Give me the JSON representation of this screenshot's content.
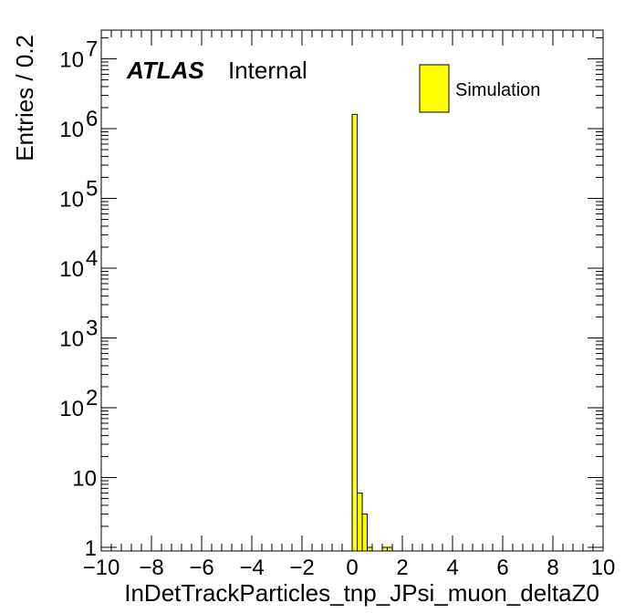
{
  "chart_data": {
    "type": "bar",
    "xlabel": "InDetTrackParticles_tnp_JPsi_muon_deltaZ0",
    "ylabel": "Entries / 0.2",
    "xlim": [
      -10,
      10
    ],
    "ylim": [
      0.8,
      25000000
    ],
    "yscale": "log",
    "bin_width": 0.2,
    "bin_edges": [
      0.0,
      0.2,
      0.4,
      0.6,
      0.8,
      1.0,
      1.2,
      1.4,
      1.6
    ],
    "values": [
      1600000,
      6,
      3,
      1,
      0,
      0,
      1,
      1
    ],
    "x_ticks": [
      "−10",
      "−8",
      "−6",
      "−4",
      "−2",
      "0",
      "2",
      "4",
      "6",
      "8",
      "10"
    ],
    "x_tick_values": [
      -10,
      -8,
      -6,
      -4,
      -2,
      0,
      2,
      4,
      6,
      8,
      10
    ],
    "y_tick_values": [
      1,
      10,
      100,
      1000,
      10000,
      100000,
      1000000,
      10000000
    ],
    "y_tick_base": "10",
    "y_tick_exponents": [
      "",
      "",
      "2",
      "3",
      "4",
      "5",
      "6",
      "7"
    ],
    "y_tick_plain": [
      "1",
      "10",
      "",
      "",
      "",
      "",
      "",
      ""
    ],
    "atlas_label": "ATLAS",
    "atlas_sublabel": "Internal",
    "legend": {
      "entries": [
        "Simulation"
      ],
      "placement": "top-right"
    },
    "series_color": "#ffff00",
    "edge_color": "#000000"
  }
}
